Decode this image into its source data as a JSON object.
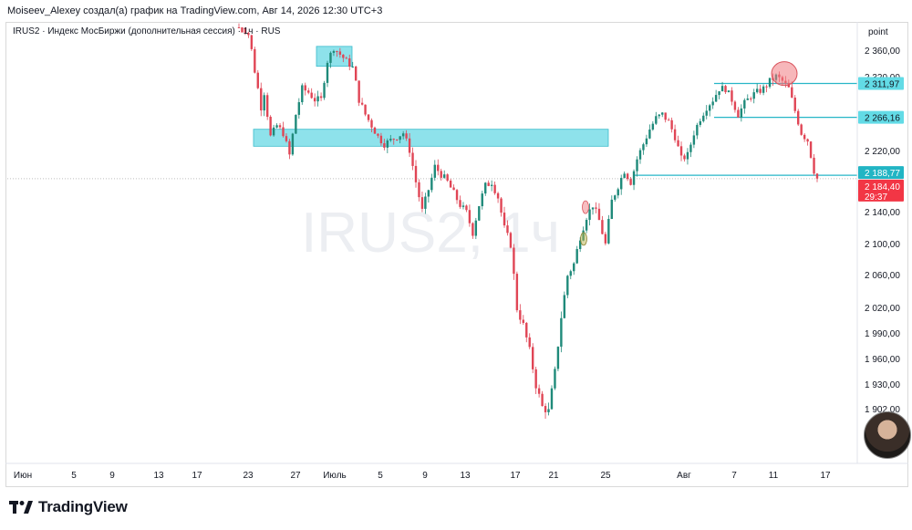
{
  "header": {
    "text": "Moiseev_Alexey создал(а) график на TradingView.com, Авг 14, 2026 12:30 UTC+3"
  },
  "legend": {
    "text": "IRUS2 · Индекс МосБиржи (дополнительная сессия) · 1ч · RUS"
  },
  "watermark": "IRUS2, 1ч",
  "footer": {
    "brand": "TradingView"
  },
  "chart_data": {
    "type": "candlestick",
    "symbol": "IRUS2",
    "timeframe": "1ч",
    "axis_unit_label": "point",
    "y_ticks": [
      {
        "label": "2 360,00",
        "value": 2360
      },
      {
        "label": "2 320,00",
        "value": 2320
      },
      {
        "label": "2 220,00",
        "value": 2220
      },
      {
        "label": "2 140,00",
        "value": 2140
      },
      {
        "label": "2 100,00",
        "value": 2100
      },
      {
        "label": "2 060,00",
        "value": 2060
      },
      {
        "label": "2 020,00",
        "value": 2020
      },
      {
        "label": "1 990,00",
        "value": 1990
      },
      {
        "label": "1 960,00",
        "value": 1960
      },
      {
        "label": "1 930,00",
        "value": 1930
      },
      {
        "label": "1 902,00",
        "value": 1902
      }
    ],
    "x_ticks": [
      "Июн",
      "5",
      "9",
      "13",
      "17",
      "23",
      "27",
      "Июль",
      "5",
      "9",
      "13",
      "17",
      "21",
      "25",
      "Авг",
      "7",
      "11",
      "17"
    ],
    "price_labels": [
      {
        "label": "2 311,97",
        "value": 2311.97,
        "style": "cyan"
      },
      {
        "label": "2 266,16",
        "value": 2266.16,
        "style": "cyan"
      },
      {
        "label": "2 188,77",
        "value": 2188.77,
        "style": "teal"
      },
      {
        "label": "2 184,40",
        "sub": "29:37",
        "value": 2184.4,
        "style": "red"
      }
    ],
    "horizontal_levels": [
      {
        "value": 2311.97,
        "from": "Авг 5",
        "to": "end"
      },
      {
        "value": 2266.16,
        "from": "Авг 5",
        "to": "end"
      },
      {
        "value": 2188.77,
        "from": "Июль 25",
        "to": "end"
      }
    ],
    "zones": [
      {
        "low": 2227,
        "high": 2250,
        "from": "Июн 23",
        "to": "Июль 25"
      },
      {
        "low": 2337,
        "high": 2370,
        "from": "Июн 28",
        "to": "Июль 2"
      }
    ],
    "markers": [
      {
        "at": "Авг 12",
        "price": 2326,
        "color": "red",
        "size": "large"
      },
      {
        "at": "Июль 23",
        "price": 2147,
        "color": "red",
        "size": "small"
      },
      {
        "at": "Июль 23",
        "price": 2107,
        "color": "olive",
        "size": "small"
      }
    ],
    "path": [
      [
        0,
        2420
      ],
      [
        3,
        2395
      ],
      [
        5,
        2330
      ],
      [
        7,
        2280
      ],
      [
        8,
        2300
      ],
      [
        10,
        2240
      ],
      [
        12,
        2255
      ],
      [
        14,
        2245
      ],
      [
        16,
        2215
      ],
      [
        18,
        2270
      ],
      [
        20,
        2305
      ],
      [
        22,
        2300
      ],
      [
        24,
        2290
      ],
      [
        26,
        2290
      ],
      [
        28,
        2345
      ],
      [
        30,
        2365
      ],
      [
        32,
        2355
      ],
      [
        34,
        2345
      ],
      [
        36,
        2335
      ],
      [
        38,
        2290
      ],
      [
        40,
        2270
      ],
      [
        42,
        2255
      ],
      [
        44,
        2240
      ],
      [
        46,
        2230
      ],
      [
        48,
        2235
      ],
      [
        50,
        2240
      ],
      [
        52,
        2245
      ],
      [
        54,
        2222
      ],
      [
        56,
        2180
      ],
      [
        58,
        2142
      ],
      [
        60,
        2170
      ],
      [
        62,
        2200
      ],
      [
        64,
        2190
      ],
      [
        66,
        2180
      ],
      [
        68,
        2165
      ],
      [
        70,
        2150
      ],
      [
        72,
        2140
      ],
      [
        74,
        2115
      ],
      [
        76,
        2150
      ],
      [
        78,
        2175
      ],
      [
        80,
        2180
      ],
      [
        82,
        2160
      ],
      [
        84,
        2120
      ],
      [
        86,
        2100
      ],
      [
        88,
        2020
      ],
      [
        90,
        2000
      ],
      [
        92,
        1970
      ],
      [
        94,
        1930
      ],
      [
        96,
        1905
      ],
      [
        98,
        1900
      ],
      [
        100,
        1945
      ],
      [
        102,
        2010
      ],
      [
        104,
        2060
      ],
      [
        106,
        2075
      ],
      [
        108,
        2110
      ],
      [
        110,
        2135
      ],
      [
        112,
        2150
      ],
      [
        114,
        2130
      ],
      [
        116,
        2100
      ],
      [
        118,
        2155
      ],
      [
        120,
        2175
      ],
      [
        122,
        2195
      ],
      [
        124,
        2180
      ],
      [
        126,
        2210
      ],
      [
        128,
        2230
      ],
      [
        130,
        2250
      ],
      [
        132,
        2265
      ],
      [
        134,
        2270
      ],
      [
        136,
        2260
      ],
      [
        138,
        2240
      ],
      [
        140,
        2210
      ],
      [
        142,
        2215
      ],
      [
        144,
        2245
      ],
      [
        146,
        2265
      ],
      [
        148,
        2280
      ],
      [
        150,
        2290
      ],
      [
        152,
        2305
      ],
      [
        154,
        2305
      ],
      [
        156,
        2290
      ],
      [
        158,
        2270
      ],
      [
        160,
        2285
      ],
      [
        162,
        2295
      ],
      [
        164,
        2300
      ],
      [
        166,
        2305
      ],
      [
        168,
        2315
      ],
      [
        170,
        2322
      ],
      [
        172,
        2315
      ],
      [
        174,
        2305
      ],
      [
        176,
        2275
      ],
      [
        178,
        2245
      ],
      [
        180,
        2235
      ],
      [
        182,
        2195
      ],
      [
        183,
        2184.4
      ]
    ]
  }
}
